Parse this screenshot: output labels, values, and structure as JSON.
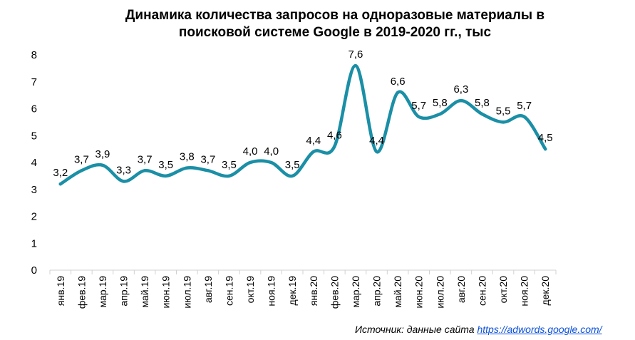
{
  "title_line1": "Динамика количества запросов на одноразовые материалы в",
  "title_line2": "поисковой системе Google в 2019-2020 гг., тыс",
  "source_prefix": "Источник: данные сайта ",
  "source_link": "https://adwords.google.com/",
  "colors": {
    "line": "#1a8fa6",
    "axis": "#d0d0d0"
  },
  "chart_data": {
    "type": "line",
    "categories": [
      "янв.19",
      "фев.19",
      "мар.19",
      "апр.19",
      "май.19",
      "июн.19",
      "июл.19",
      "авг.19",
      "сен.19",
      "окт.19",
      "ноя.19",
      "дек.19",
      "янв.20",
      "фев.20",
      "мар.20",
      "апр.20",
      "май.20",
      "июн.20",
      "июл.20",
      "авг.20",
      "сен.20",
      "окт.20",
      "ноя.20",
      "дек.20"
    ],
    "values": [
      3.2,
      3.7,
      3.9,
      3.3,
      3.7,
      3.5,
      3.8,
      3.7,
      3.5,
      4.0,
      4.0,
      3.5,
      4.4,
      4.6,
      7.6,
      4.4,
      6.6,
      5.7,
      5.8,
      6.3,
      5.8,
      5.5,
      5.7,
      4.5
    ],
    "data_labels": [
      "3,2",
      "3,7",
      "3,9",
      "3,3",
      "3,7",
      "3,5",
      "3,8",
      "3,7",
      "3,5",
      "4,0",
      "4,0",
      "3,5",
      "4,4",
      "4,6",
      "7,6",
      "4,4",
      "6,6",
      "5,7",
      "5,8",
      "6,3",
      "5,8",
      "5,5",
      "5,7",
      "4,5"
    ],
    "y_ticks": [
      "0",
      "1",
      "2",
      "3",
      "4",
      "5",
      "6",
      "7",
      "8"
    ],
    "ylim": [
      0,
      8
    ],
    "grid": false,
    "legend": "none"
  }
}
